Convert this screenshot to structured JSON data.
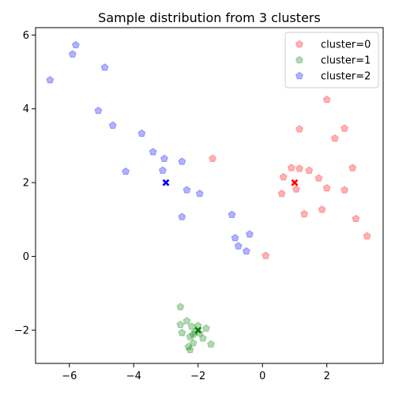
{
  "chart_data": {
    "type": "scatter",
    "title": "Sample distribution from 3 clusters",
    "xlabel": "",
    "ylabel": "",
    "xlim": [
      -7.05,
      3.75
    ],
    "ylim": [
      -2.9,
      6.2
    ],
    "xticks": [
      -6,
      -4,
      -2,
      0,
      2
    ],
    "yticks": [
      -2,
      0,
      2,
      4,
      6
    ],
    "grid": false,
    "legend_position": "top-right",
    "series": [
      {
        "name": "cluster=0",
        "color": "#ff0000",
        "marker": "pentagon",
        "points": [
          [
            2.0,
            4.25
          ],
          [
            1.15,
            3.45
          ],
          [
            2.55,
            3.47
          ],
          [
            2.25,
            3.2
          ],
          [
            -1.55,
            2.65
          ],
          [
            0.9,
            2.4
          ],
          [
            1.15,
            2.38
          ],
          [
            1.45,
            2.33
          ],
          [
            2.8,
            2.4
          ],
          [
            0.65,
            2.15
          ],
          [
            1.75,
            2.12
          ],
          [
            1.05,
            1.82
          ],
          [
            2.0,
            1.85
          ],
          [
            2.55,
            1.8
          ],
          [
            0.6,
            1.7
          ],
          [
            1.85,
            1.27
          ],
          [
            1.3,
            1.15
          ],
          [
            2.9,
            1.02
          ],
          [
            3.25,
            0.55
          ],
          [
            0.1,
            0.02
          ]
        ],
        "center": [
          1.0,
          2.0
        ]
      },
      {
        "name": "cluster=1",
        "color": "#008000",
        "marker": "pentagon",
        "points": [
          [
            -2.55,
            -1.37
          ],
          [
            -2.35,
            -1.75
          ],
          [
            -2.55,
            -1.85
          ],
          [
            -2.2,
            -1.9
          ],
          [
            -2.0,
            -1.88
          ],
          [
            -1.75,
            -1.95
          ],
          [
            -2.1,
            -2.05
          ],
          [
            -1.95,
            -2.08
          ],
          [
            -2.5,
            -2.07
          ],
          [
            -2.15,
            -2.12
          ],
          [
            -2.25,
            -2.18
          ],
          [
            -1.85,
            -2.22
          ],
          [
            -2.15,
            -2.35
          ],
          [
            -1.6,
            -2.38
          ],
          [
            -2.3,
            -2.45
          ],
          [
            -2.25,
            -2.53
          ]
        ],
        "center": [
          -2.0,
          -2.0
        ]
      },
      {
        "name": "cluster=2",
        "color": "#0000ff",
        "marker": "pentagon",
        "points": [
          [
            -5.8,
            5.73
          ],
          [
            -5.9,
            5.48
          ],
          [
            -4.9,
            5.12
          ],
          [
            -6.6,
            4.78
          ],
          [
            -5.1,
            3.95
          ],
          [
            -4.65,
            3.55
          ],
          [
            -3.75,
            3.33
          ],
          [
            -3.4,
            2.83
          ],
          [
            -3.05,
            2.65
          ],
          [
            -2.5,
            2.57
          ],
          [
            -4.25,
            2.3
          ],
          [
            -3.1,
            2.33
          ],
          [
            -2.35,
            1.8
          ],
          [
            -1.95,
            1.7
          ],
          [
            -2.5,
            1.07
          ],
          [
            -0.95,
            1.13
          ],
          [
            -0.4,
            0.6
          ],
          [
            -0.85,
            0.5
          ],
          [
            -0.75,
            0.28
          ],
          [
            -0.5,
            0.14
          ]
        ],
        "center": [
          -3.0,
          2.0
        ]
      }
    ]
  }
}
